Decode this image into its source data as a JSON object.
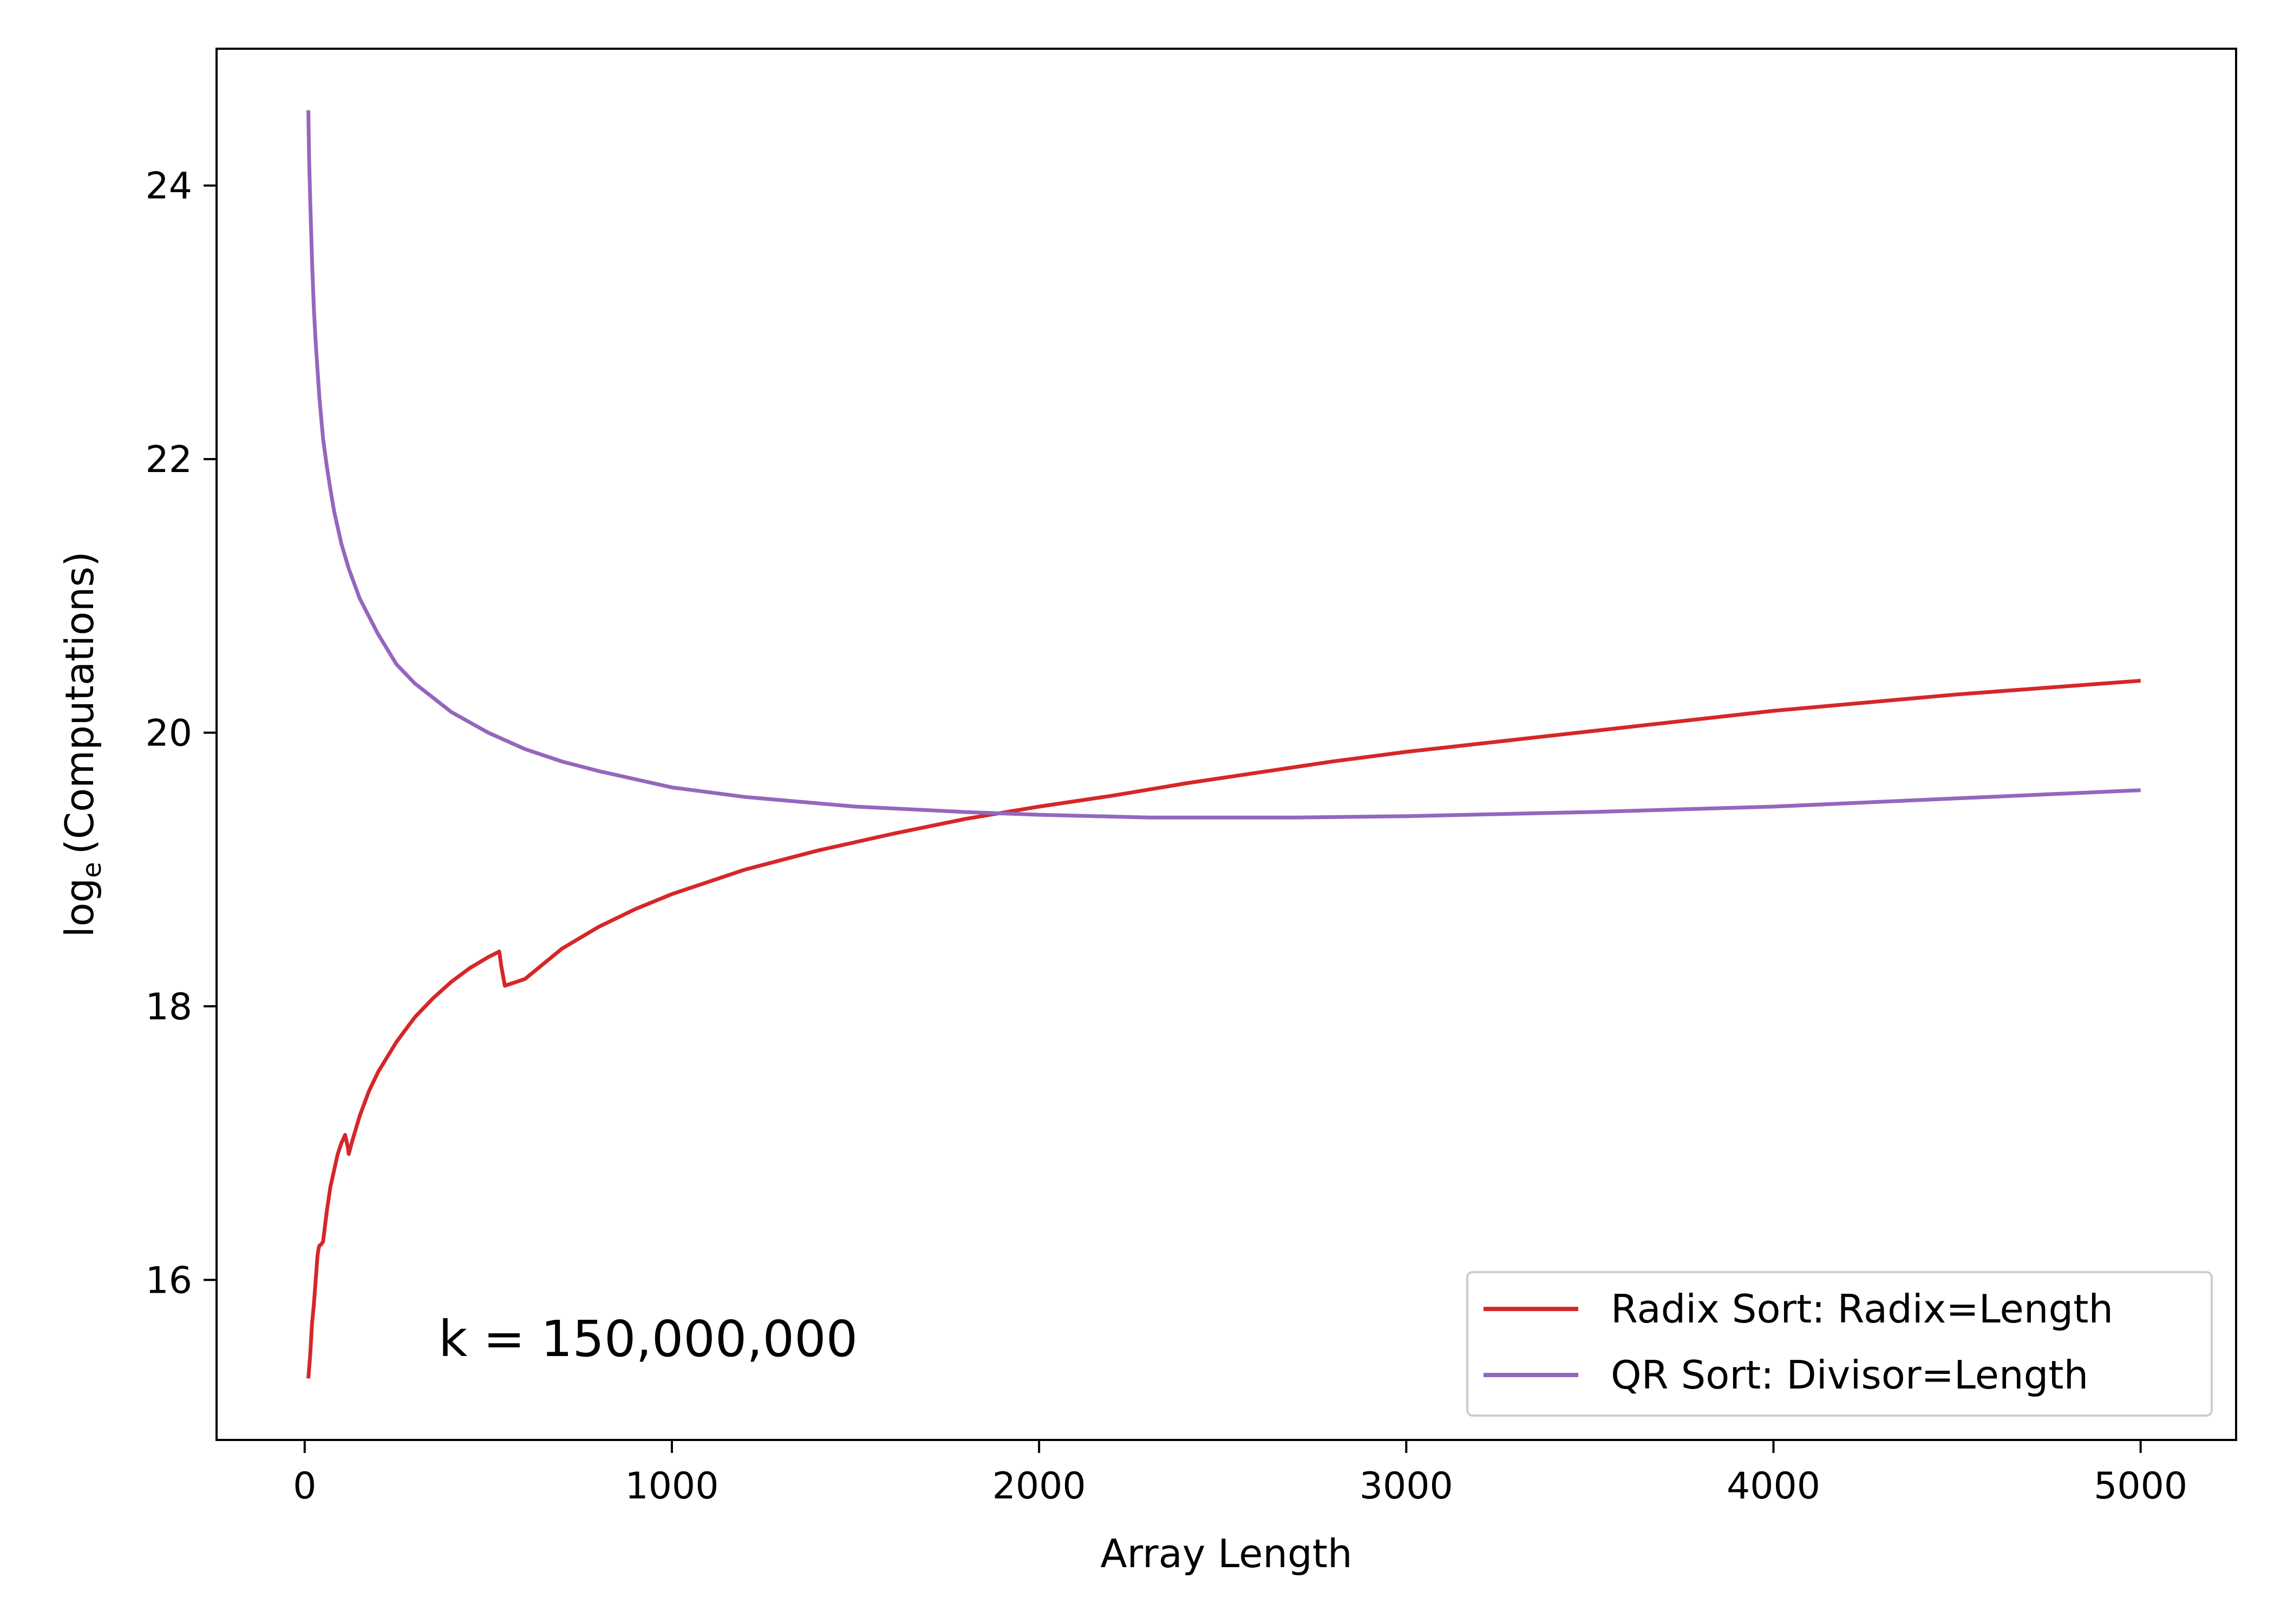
{
  "chart_data": {
    "type": "line",
    "title": "",
    "xlabel": "Array Length",
    "ylabel": {
      "prefix": "log",
      "subscript": "e",
      "suffix": "(Computations)"
    },
    "xlim": [
      -240,
      5260
    ],
    "ylim": [
      14.83,
      25.0
    ],
    "xticks": [
      0,
      1000,
      2000,
      3000,
      4000,
      5000
    ],
    "xtick_labels": [
      "0",
      "1000",
      "2000",
      "3000",
      "4000",
      "5000"
    ],
    "yticks": [
      16,
      18,
      20,
      22,
      24
    ],
    "ytick_labels": [
      "16",
      "18",
      "20",
      "22",
      "24"
    ],
    "grid": false,
    "legend_position": "lower-right",
    "annotation": "k = 150,000,000",
    "series": [
      {
        "name": "Radix Sort: Radix=Length",
        "color": "#d62728",
        "x": [
          10,
          15,
          20,
          25,
          30,
          35,
          38,
          40,
          45,
          50,
          60,
          70,
          80,
          90,
          100,
          110,
          115,
          118,
          120,
          130,
          150,
          175,
          200,
          250,
          300,
          350,
          400,
          450,
          500,
          530,
          535,
          545,
          600,
          700,
          800,
          900,
          1000,
          1200,
          1400,
          1600,
          1800,
          2000,
          2200,
          2400,
          2600,
          2800,
          3000,
          3500,
          4000,
          4500,
          5000
        ],
        "y": [
          15.28,
          15.45,
          15.68,
          15.82,
          16.0,
          16.18,
          16.23,
          16.25,
          16.26,
          16.28,
          16.5,
          16.68,
          16.8,
          16.92,
          17.0,
          17.06,
          17.0,
          16.96,
          16.92,
          17.02,
          17.2,
          17.38,
          17.52,
          17.74,
          17.92,
          18.06,
          18.18,
          18.28,
          18.36,
          18.4,
          18.3,
          18.15,
          18.2,
          18.42,
          18.58,
          18.71,
          18.82,
          19.0,
          19.14,
          19.26,
          19.37,
          19.46,
          19.54,
          19.63,
          19.71,
          19.79,
          19.86,
          20.01,
          20.16,
          20.28,
          20.38
        ]
      },
      {
        "name": "QR Sort: Divisor=Length",
        "color": "#9467bd",
        "x": [
          10,
          12,
          15,
          20,
          25,
          30,
          40,
          50,
          60,
          70,
          80,
          100,
          120,
          150,
          200,
          250,
          300,
          400,
          500,
          600,
          700,
          800,
          1000,
          1200,
          1500,
          1800,
          2000,
          2300,
          2500,
          2700,
          3000,
          3500,
          4000,
          4500,
          5000
        ],
        "y": [
          24.55,
          24.2,
          23.9,
          23.45,
          23.1,
          22.85,
          22.45,
          22.15,
          21.95,
          21.78,
          21.62,
          21.38,
          21.2,
          20.98,
          20.72,
          20.5,
          20.36,
          20.15,
          20.0,
          19.88,
          19.79,
          19.72,
          19.6,
          19.53,
          19.46,
          19.42,
          19.4,
          19.38,
          19.38,
          19.38,
          19.39,
          19.42,
          19.46,
          19.52,
          19.58
        ]
      }
    ]
  }
}
